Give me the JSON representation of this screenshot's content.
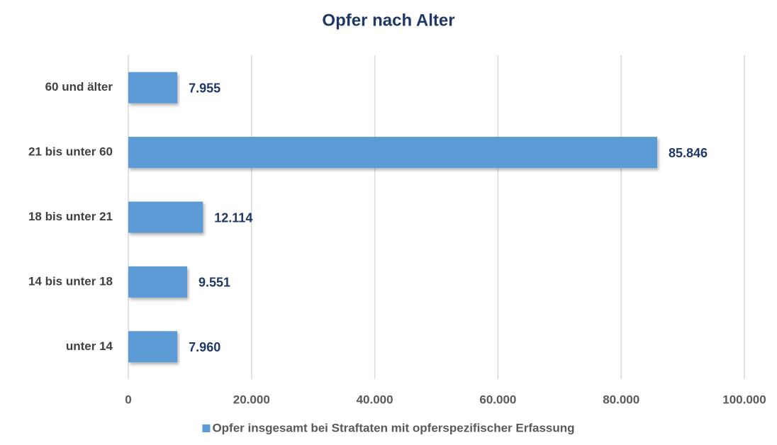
{
  "chart_data": {
    "type": "bar",
    "orientation": "horizontal",
    "title": "Opfer nach Alter",
    "categories": [
      "60 und älter",
      "21 bis unter 60",
      "18 bis unter 21",
      "14 bis unter 18",
      "unter 14"
    ],
    "series": [
      {
        "name": "Opfer insgesamt bei Straftaten mit opferspezifischer Erfassung",
        "color": "#5b9bd5",
        "values": [
          7955,
          85846,
          12114,
          9551,
          7960
        ],
        "value_labels": [
          "7.955",
          "85.846",
          "12.114",
          "9.551",
          "7.960"
        ]
      }
    ],
    "xlim": [
      0,
      100000
    ],
    "xticks": [
      0,
      {
        "value": 20000,
        "label": "20.000"
      },
      {
        "value": 40000,
        "label": "40.000"
      },
      {
        "value": 60000,
        "label": "60.000"
      },
      {
        "value": 80000,
        "label": "80.000"
      },
      {
        "value": 100000,
        "label": "100.000"
      }
    ],
    "grid": true,
    "legend": "bottom"
  }
}
